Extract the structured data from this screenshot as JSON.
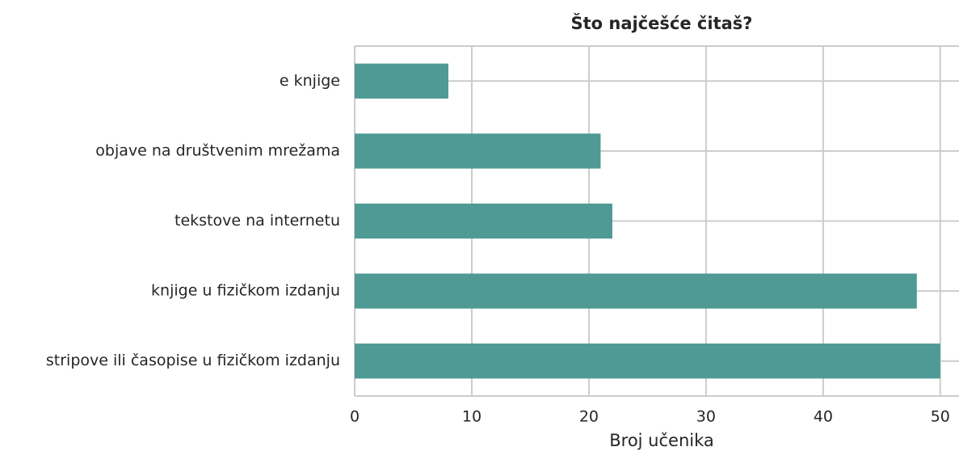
{
  "chart_data": {
    "type": "barh",
    "title": "Što najčešće čitaš?",
    "xlabel": "Broj učenika",
    "categories": [
      "e knjige",
      "objave na društvenim mrežama",
      "tekstove na internetu",
      "knjige u fizičkom izdanju",
      "stripove ili časopise u fizičkom izdanju"
    ],
    "values": [
      8,
      21,
      22,
      48,
      50
    ],
    "color": "#4f9a94",
    "xlim": [
      0,
      51.6
    ],
    "xticks": [
      0,
      10,
      20,
      30,
      40,
      50
    ],
    "grid": true
  }
}
